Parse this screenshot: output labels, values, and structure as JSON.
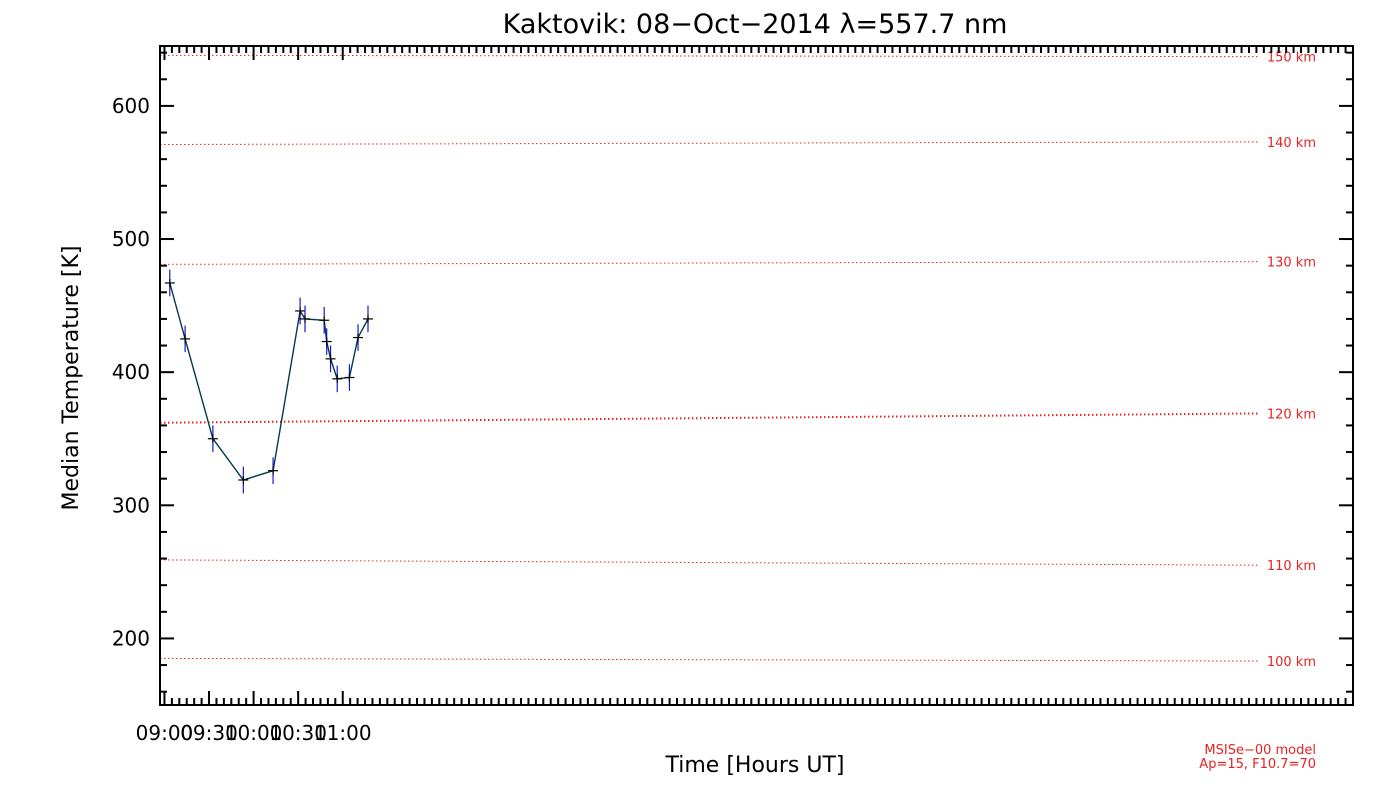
{
  "chart_data": {
    "type": "line",
    "title": "Kaktovik: 08−Oct−2014 λ=557.7 nm",
    "xlabel": "Time [Hours UT]",
    "ylabel": "Median Temperature [K]",
    "xlim_minutes": [
      537,
      1340
    ],
    "ylim": [
      150,
      645
    ],
    "x_ticks": [
      {
        "minutes": 540,
        "label": "09:00"
      },
      {
        "minutes": 570,
        "label": "09:30"
      },
      {
        "minutes": 600,
        "label": "10:00"
      },
      {
        "minutes": 630,
        "label": "10:30"
      },
      {
        "minutes": 660,
        "label": "11:00"
      }
    ],
    "y_ticks": [
      200,
      300,
      400,
      500,
      600
    ],
    "series": [
      {
        "name": "Median temperature",
        "color": "#003a4d",
        "marker_color": "#000000",
        "errorbar_color": "#1a1acc",
        "x_minutes": [
          543.6,
          553.9,
          572.6,
          593.1,
          613.1,
          631.3,
          634.6,
          647.5,
          649.2,
          651.8,
          656.3,
          664.5,
          670.3
        ],
        "y": [
          467,
          425,
          350,
          319,
          326,
          446,
          440,
          439,
          423,
          410,
          395,
          396,
          426
        ],
        "error": [
          10,
          10,
          10,
          10,
          10,
          10,
          10,
          10,
          10,
          10,
          10,
          10,
          10
        ]
      }
    ],
    "series_extra_point": {
      "x_minutes": 677.0,
      "y": 440,
      "error": 10
    },
    "msis_altitudes": {
      "color": "#e52222",
      "lines": [
        {
          "label": "150 km",
          "y_start": 638,
          "y_end": 637
        },
        {
          "label": "140 km",
          "y_start": 571,
          "y_end": 573
        },
        {
          "label": "130 km",
          "y_start": 481,
          "y_end": 483
        },
        {
          "label": "120 km",
          "y_start": 362,
          "y_end": 369
        },
        {
          "label": "110 km",
          "y_start": 259,
          "y_end": 255
        },
        {
          "label": "100 km",
          "y_start": 185,
          "y_end": 183
        }
      ]
    },
    "model_note": [
      "MSISe−00 model",
      "Ap=15, F10.7=70"
    ]
  }
}
